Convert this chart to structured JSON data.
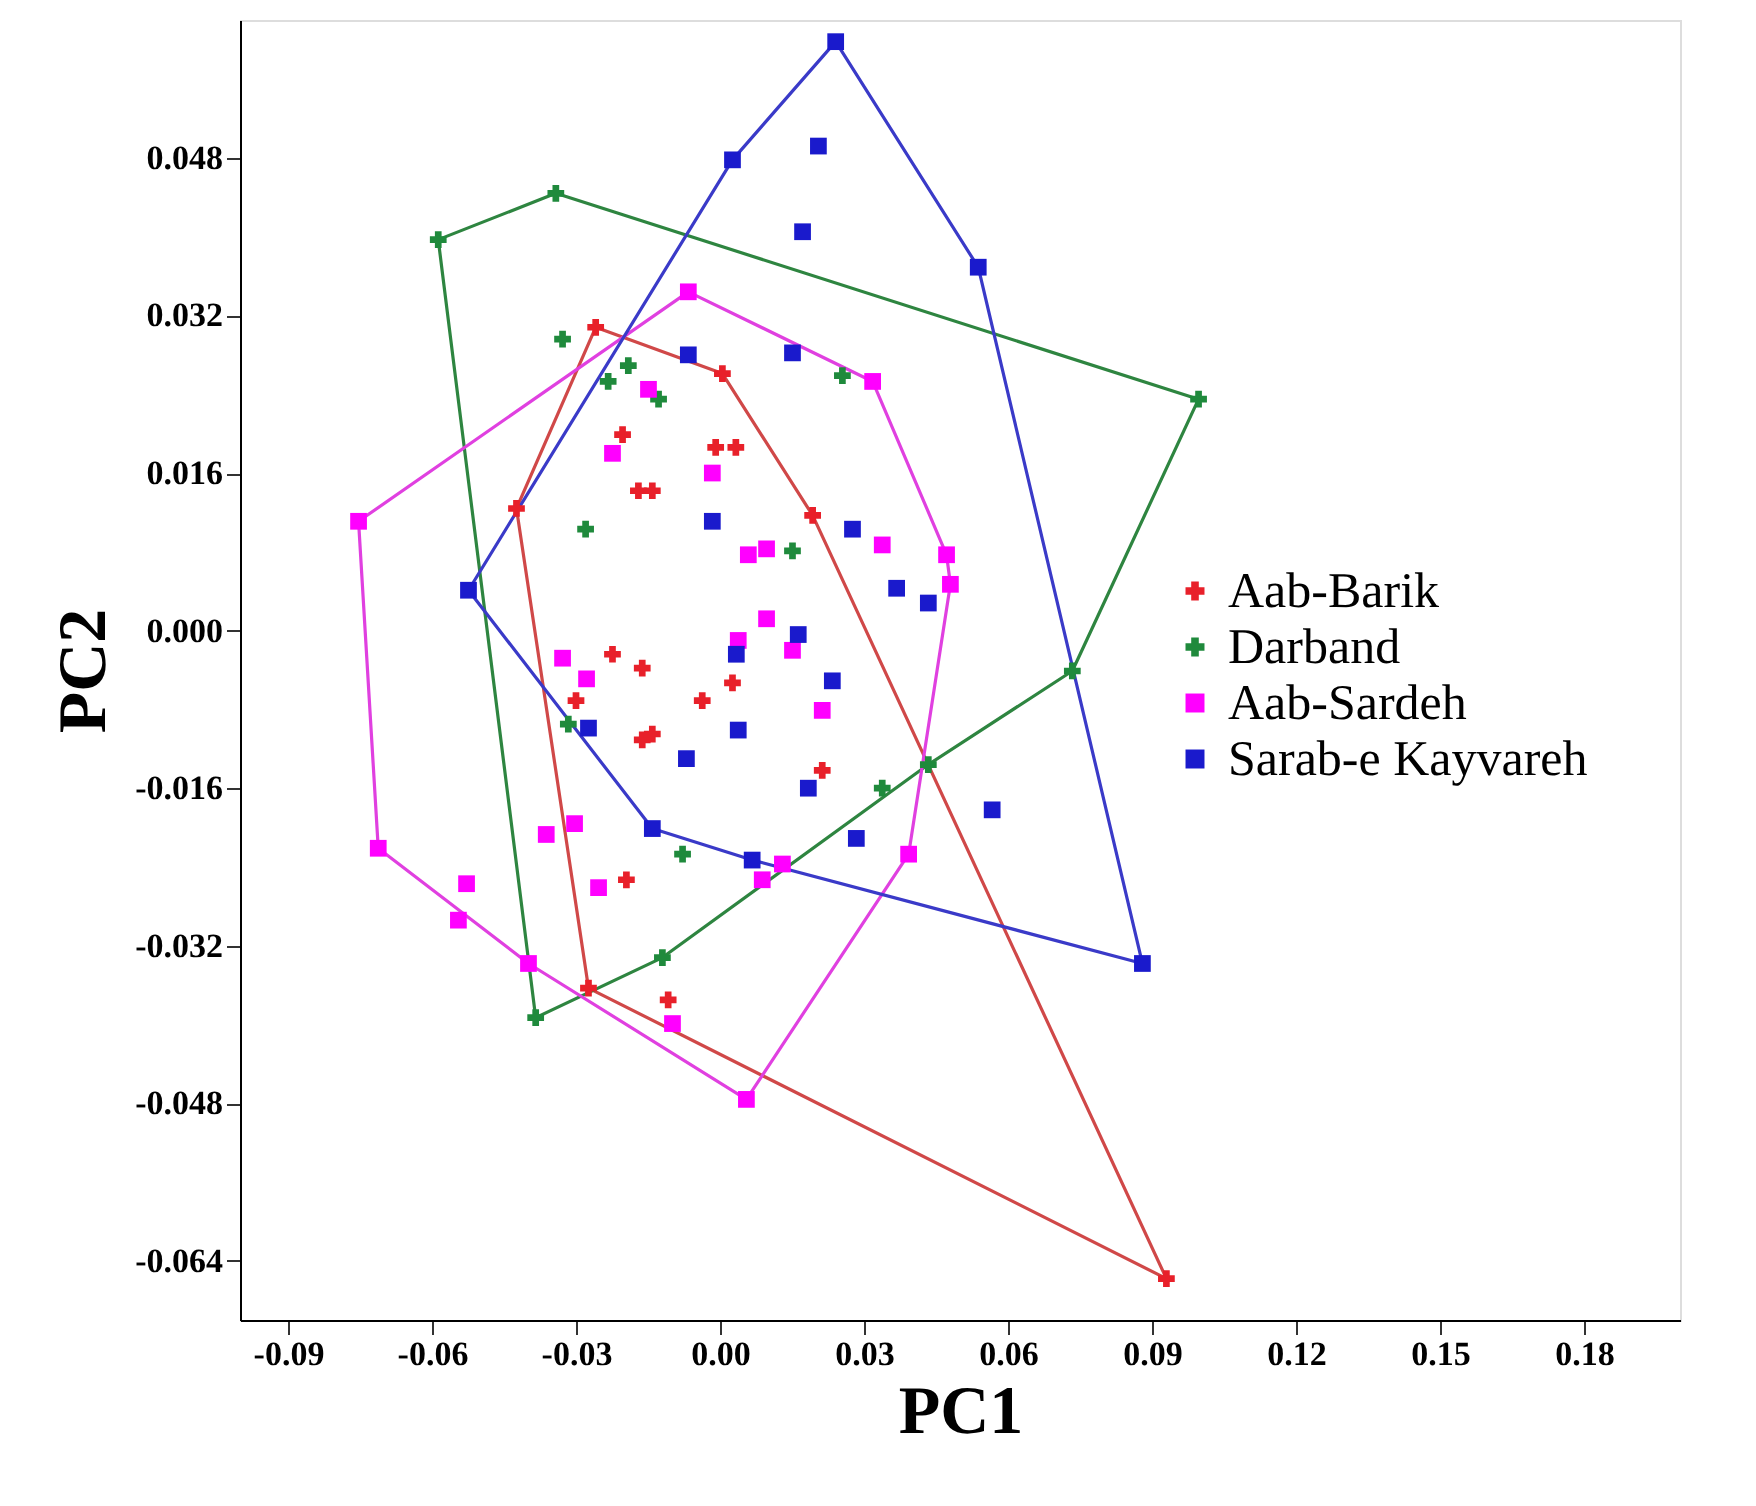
{
  "chart_data": {
    "type": "scatter",
    "xlabel": "PC1",
    "ylabel": "PC2",
    "xlim": [
      -0.1,
      0.2
    ],
    "ylim": [
      -0.07,
      0.062
    ],
    "xticks": [
      {
        "value": -0.09,
        "label": "-0.09"
      },
      {
        "value": -0.06,
        "label": "-0.06"
      },
      {
        "value": -0.03,
        "label": "-0.03"
      },
      {
        "value": 0,
        "label": "0.00"
      },
      {
        "value": 0.03,
        "label": "0.03"
      },
      {
        "value": 0.06,
        "label": "0.06"
      },
      {
        "value": 0.09,
        "label": "0.09"
      },
      {
        "value": 0.12,
        "label": "0.12"
      },
      {
        "value": 0.15,
        "label": "0.15"
      },
      {
        "value": 0.18,
        "label": "0.18"
      }
    ],
    "yticks": [
      {
        "value": -0.064,
        "label": "-0.064"
      },
      {
        "value": -0.048,
        "label": "-0.048"
      },
      {
        "value": -0.032,
        "label": "-0.032"
      },
      {
        "value": -0.016,
        "label": "-0.016"
      },
      {
        "value": 0,
        "label": "0.000"
      },
      {
        "value": 0.016,
        "label": "0.016"
      },
      {
        "value": 0.032,
        "label": "0.032"
      },
      {
        "value": 0.048,
        "label": "0.048"
      }
    ],
    "grid": false,
    "legend": "right",
    "series": [
      {
        "type": "line",
        "color": "#d04848",
        "x": [
          -0.0424,
          -0.0259,
          0.0005,
          0.0193,
          0.093
        ],
        "values": [
          0.0124,
          0.0308,
          0.0261,
          0.0117,
          -0.0658
        ]
      },
      {
        "type": "line",
        "color": "#d04848",
        "x": [
          -0.0424,
          -0.0274,
          0.093
        ],
        "values": [
          0.0124,
          -0.0363,
          -0.0658
        ]
      },
      {
        "type": "line",
        "color": "#2e8540",
        "x": [
          -0.0587,
          -0.0342,
          0.0997
        ],
        "values": [
          0.0397,
          0.0444,
          0.0235
        ]
      },
      {
        "type": "line",
        "color": "#2e8540",
        "x": [
          -0.0587,
          -0.0384,
          -0.012,
          0.0434,
          0.0734,
          0.0997
        ],
        "values": [
          0.0397,
          -0.0393,
          -0.0332,
          -0.0136,
          -0.0041,
          0.0235
        ]
      },
      {
        "type": "line",
        "color": "#e040e0",
        "x": [
          -0.0753,
          -0.0066,
          0.0318,
          0.0472,
          0.048
        ],
        "values": [
          0.0111,
          0.0344,
          0.0253,
          0.0077,
          0.0047
        ]
      },
      {
        "type": "line",
        "color": "#e040e0",
        "x": [
          -0.0753,
          -0.0712,
          -0.0399,
          0.0055,
          0.0393,
          0.048
        ],
        "values": [
          0.0111,
          -0.0221,
          -0.0338,
          -0.0476,
          -0.0227,
          0.0047
        ]
      },
      {
        "type": "line",
        "color": "#3a3ac8",
        "x": [
          -0.0524,
          0.0026,
          0.0241,
          0.0538,
          0.088
        ],
        "values": [
          0.0041,
          0.0478,
          0.0598,
          0.0369,
          -0.0338
        ]
      },
      {
        "type": "line",
        "color": "#3a3ac8",
        "x": [
          -0.0524,
          -0.0141,
          0.0067,
          0.088
        ],
        "values": [
          0.0041,
          -0.0201,
          -0.0233,
          -0.0338
        ]
      },
      {
        "type": "scatter",
        "name": "Aab-Barik",
        "color": "#e8202a",
        "marker": "cross",
        "x": [
          -0.0259,
          0.0005,
          0.0193,
          0.093,
          -0.0274,
          -0.0424,
          -0.0203,
          -0.0009,
          0.0033,
          -0.017,
          -0.0141,
          -0.0224,
          -0.0162,
          -0.03,
          -0.0037,
          0.0026,
          -0.0162,
          -0.0141,
          0.0213,
          -0.0195,
          -0.0108
        ],
        "values": [
          0.0308,
          0.0261,
          0.0117,
          -0.0658,
          -0.0363,
          0.0124,
          0.0199,
          0.0186,
          0.0186,
          0.0142,
          0.0142,
          -0.0024,
          -0.0038,
          -0.0071,
          -0.0071,
          -0.0053,
          -0.0111,
          -0.0105,
          -0.0142,
          -0.0253,
          -0.0375
        ]
      },
      {
        "type": "scatter",
        "name": "Darband",
        "color": "#1f8a3c",
        "marker": "cross",
        "x": [
          -0.0587,
          -0.0342,
          0.0997,
          0.0734,
          0.0434,
          0.0338,
          -0.012,
          -0.0384,
          -0.0328,
          -0.0233,
          -0.0191,
          -0.0128,
          0.0255,
          -0.028,
          0.0151,
          -0.0078,
          -0.0316
        ],
        "values": [
          0.0397,
          0.0444,
          0.0235,
          -0.0041,
          -0.0136,
          -0.016,
          -0.0332,
          -0.0393,
          0.0296,
          0.0253,
          0.0269,
          0.0235,
          0.0259,
          0.0103,
          0.0081,
          -0.0227,
          -0.0095
        ]
      },
      {
        "type": "scatter",
        "name": "Aab-Sardeh",
        "color": "#ff00ff",
        "marker": "square",
        "x": [
          -0.0066,
          0.0318,
          -0.0753,
          -0.0149,
          -0.0224,
          -0.0016,
          0.0338,
          0.0097,
          0.0472,
          0.048,
          -0.0712,
          0.0055,
          0.0393,
          0.0088,
          0.013,
          -0.0399,
          -0.0545,
          -0.0528,
          -0.0362,
          -0.0303,
          -0.0253,
          -0.0099,
          -0.0328,
          -0.0278,
          0.0097,
          0.0038,
          0.0151,
          0.0213,
          0.0059
        ],
        "values": [
          0.0344,
          0.0253,
          0.0111,
          0.0245,
          0.018,
          0.016,
          0.0087,
          0.0083,
          0.0077,
          0.0047,
          -0.0221,
          -0.0476,
          -0.0227,
          -0.0253,
          -0.0237,
          -0.0338,
          -0.0294,
          -0.0257,
          -0.0207,
          -0.0196,
          -0.0261,
          -0.0399,
          -0.0028,
          -0.0049,
          0.0012,
          -0.001,
          -0.002,
          -0.0081,
          0.0077
        ]
      },
      {
        "type": "scatter",
        "name": "Sarab-e Kayvareh",
        "color": "#1a1acc",
        "marker": "square",
        "x": [
          0.0241,
          0.0026,
          0.0205,
          0.0172,
          -0.0066,
          0.0151,
          -0.0016,
          0.0276,
          0.0538,
          0.0368,
          0.0434,
          -0.0524,
          -0.0274,
          -0.007,
          0.0038,
          0.0034,
          0.0163,
          0.0234,
          0.0184,
          0.0284,
          -0.0141,
          0.0067,
          0.088,
          0.0567
        ],
        "values": [
          0.0598,
          0.0478,
          0.0492,
          0.0405,
          0.028,
          0.0282,
          0.0111,
          0.0103,
          0.0369,
          0.0043,
          0.0028,
          0.0041,
          -0.0099,
          -0.013,
          -0.0101,
          -0.0024,
          -0.0004,
          -0.0051,
          -0.016,
          -0.0211,
          -0.0201,
          -0.0233,
          -0.0338,
          -0.0182
        ]
      }
    ]
  }
}
